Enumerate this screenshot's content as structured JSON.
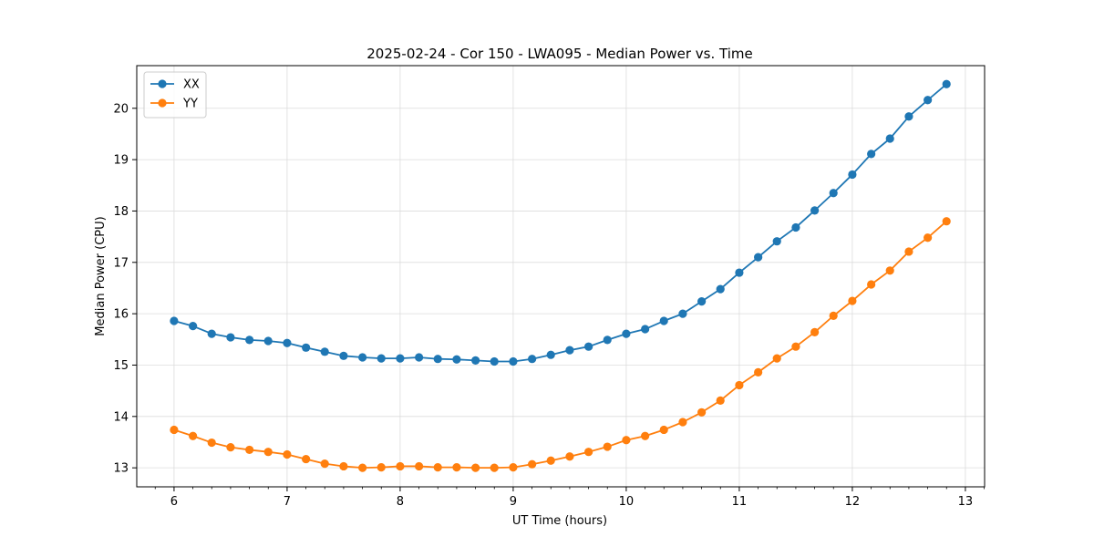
{
  "chart_data": {
    "type": "line",
    "title": "2025-02-24 - Cor 150 - LWA095 - Median Power vs. Time",
    "xlabel": "UT Time (hours)",
    "ylabel": "Median Power (CPU)",
    "xlim": [
      5.67,
      13.17
    ],
    "ylim": [
      12.63,
      20.83
    ],
    "xticks": [
      6,
      7,
      8,
      9,
      10,
      11,
      12,
      13
    ],
    "xtick_labels": [
      "6",
      "7",
      "8",
      "9",
      "10",
      "11",
      "12",
      "13"
    ],
    "yticks": [
      13,
      14,
      15,
      16,
      17,
      18,
      19,
      20
    ],
    "ytick_labels": [
      "13",
      "14",
      "15",
      "16",
      "17",
      "18",
      "19",
      "20"
    ],
    "grid": true,
    "legend_position": "upper-left",
    "x": [
      6.0,
      6.167,
      6.333,
      6.5,
      6.667,
      6.833,
      7.0,
      7.167,
      7.333,
      7.5,
      7.667,
      7.833,
      8.0,
      8.167,
      8.333,
      8.5,
      8.667,
      8.833,
      9.0,
      9.167,
      9.333,
      9.5,
      9.667,
      9.833,
      10.0,
      10.167,
      10.333,
      10.5,
      10.667,
      10.833,
      11.0,
      11.167,
      11.333,
      11.5,
      11.667,
      11.833,
      12.0,
      12.167,
      12.333,
      12.5,
      12.667,
      12.833
    ],
    "series": [
      {
        "name": "XX",
        "color": "#1f77b4",
        "values": [
          15.86,
          15.76,
          15.61,
          15.54,
          15.49,
          15.47,
          15.43,
          15.34,
          15.26,
          15.18,
          15.15,
          15.13,
          15.13,
          15.15,
          15.12,
          15.11,
          15.09,
          15.07,
          15.07,
          15.12,
          15.2,
          15.29,
          15.36,
          15.49,
          15.61,
          15.7,
          15.86,
          16.0,
          16.24,
          16.48,
          16.8,
          17.1,
          17.41,
          17.68,
          18.01,
          18.35,
          18.71,
          19.11,
          19.41,
          19.84,
          20.16,
          20.47
        ]
      },
      {
        "name": "YY",
        "color": "#ff7f0e",
        "values": [
          13.74,
          13.62,
          13.49,
          13.4,
          13.35,
          13.31,
          13.26,
          13.17,
          13.08,
          13.03,
          13.0,
          13.01,
          13.03,
          13.03,
          13.01,
          13.01,
          13.0,
          13.0,
          13.01,
          13.07,
          13.14,
          13.22,
          13.31,
          13.41,
          13.54,
          13.62,
          13.74,
          13.89,
          14.08,
          14.31,
          14.61,
          14.86,
          15.13,
          15.36,
          15.64,
          15.96,
          16.25,
          16.57,
          16.84,
          17.21,
          17.48,
          17.8
        ]
      }
    ]
  }
}
